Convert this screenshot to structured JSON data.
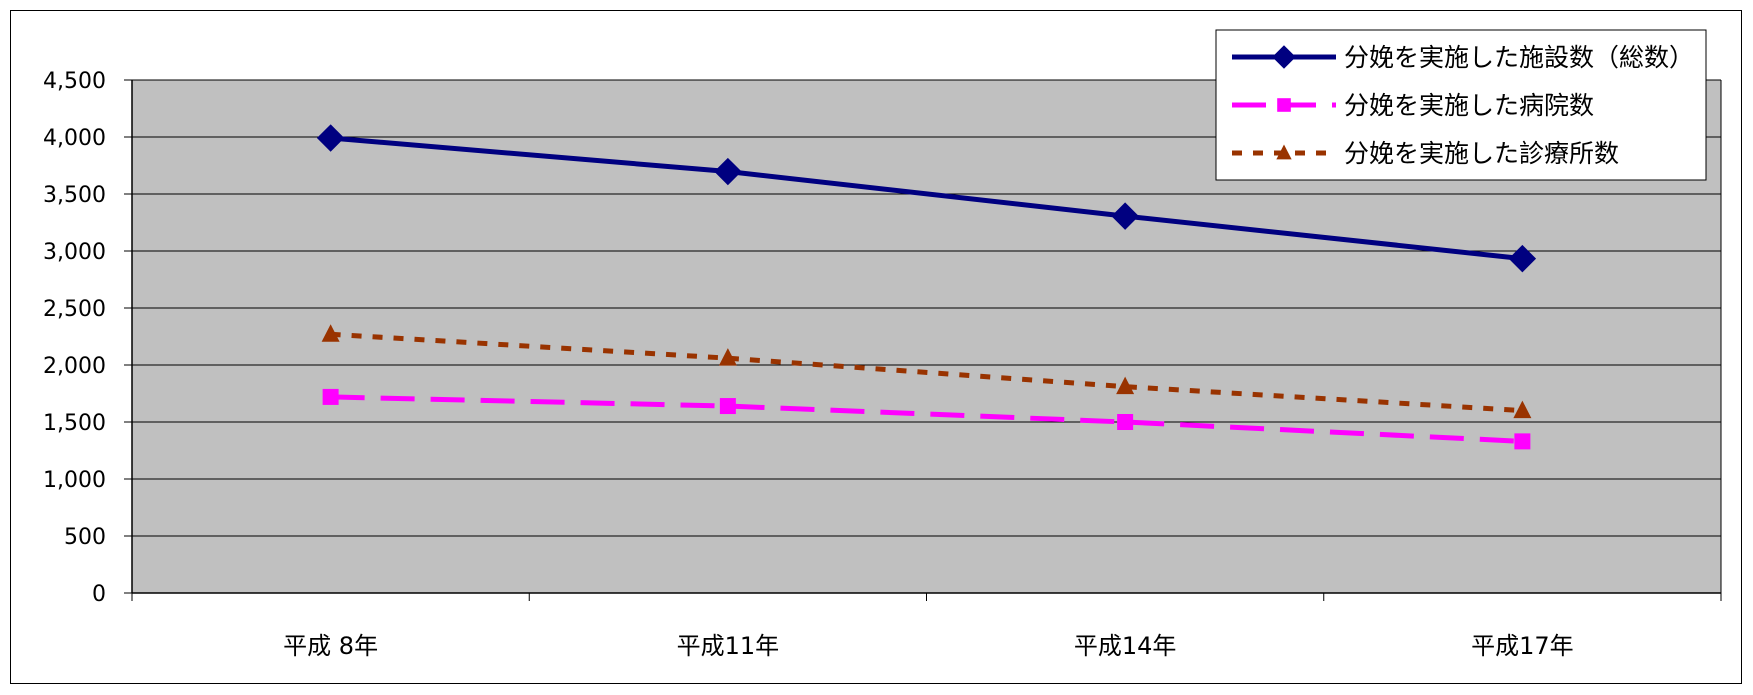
{
  "colors": {
    "plot_background": "#c0c0c0",
    "gridline": "#000000",
    "frame": "#000000"
  },
  "chart_data": {
    "type": "line",
    "categories": [
      "平成 8年",
      "平成11年",
      "平成14年",
      "平成17年"
    ],
    "series": [
      {
        "name": "分娩を実施した施設数（総数）",
        "values": [
          3991,
          3697,
          3306,
          2933
        ],
        "color": "#000080",
        "marker": "diamond",
        "line_style": "solid"
      },
      {
        "name": "分娩を実施した病院数",
        "values": [
          1720,
          1640,
          1500,
          1330
        ],
        "color": "#ff00ff",
        "marker": "square",
        "line_style": "dashed"
      },
      {
        "name": "分娩を実施した診療所数",
        "values": [
          2270,
          2060,
          1810,
          1600
        ],
        "color": "#993300",
        "marker": "triangle",
        "line_style": "dotted"
      }
    ],
    "ylim": [
      0,
      4500
    ],
    "yticks": [
      0,
      500,
      1000,
      1500,
      2000,
      2500,
      3000,
      3500,
      4000,
      4500
    ],
    "ytick_labels": [
      "0",
      "500",
      "1,000",
      "1,500",
      "2,000",
      "2,500",
      "3,000",
      "3,500",
      "4,000",
      "4,500"
    ],
    "grid": true,
    "legend_position": "top-right",
    "title": "",
    "xlabel": "",
    "ylabel": ""
  }
}
